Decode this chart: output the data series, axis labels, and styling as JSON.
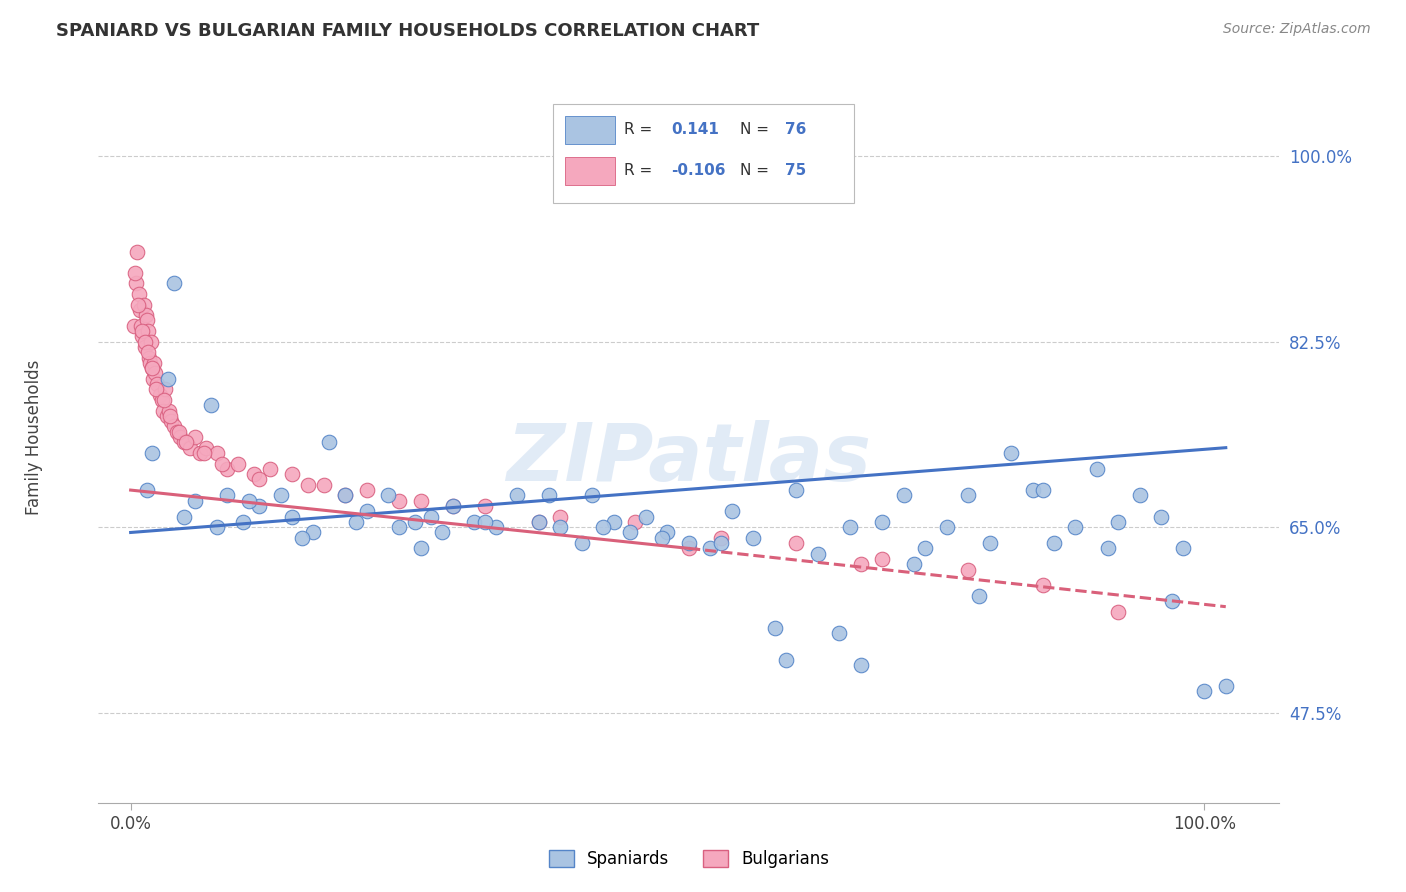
{
  "title": "SPANIARD VS BULGARIAN FAMILY HOUSEHOLDS CORRELATION CHART",
  "source_text": "Source: ZipAtlas.com",
  "ylabel": "Family Households",
  "watermark": "ZIPatlas",
  "x_tick_labels": [
    "0.0%",
    "100.0%"
  ],
  "y_tick_positions": [
    47.5,
    65.0,
    82.5,
    100.0
  ],
  "y_tick_labels": [
    "47.5%",
    "65.0%",
    "82.5%",
    "100.0%"
  ],
  "xlim": [
    -3,
    107
  ],
  "ylim": [
    39,
    108
  ],
  "spaniard_color": "#aac4e2",
  "bulgarian_color": "#f5a8be",
  "spaniard_edge_color": "#5585c8",
  "bulgarian_edge_color": "#d96080",
  "spaniard_line_color": "#4472c4",
  "bulgarian_line_color": "#d9607a",
  "background_color": "#ffffff",
  "grid_color": "#cccccc",
  "legend_label_spaniard": "Spaniards",
  "legend_label_bulgarian": "Bulgarians",
  "spaniard_trend_start_x": 0,
  "spaniard_trend_end_x": 102,
  "spaniard_trend_start_y": 64.5,
  "spaniard_trend_end_y": 72.5,
  "bulgarian_solid_start_x": 0,
  "bulgarian_solid_end_x": 52,
  "bulgarian_solid_start_y": 68.5,
  "bulgarian_solid_end_y": 63.0,
  "bulgarian_dash_start_x": 52,
  "bulgarian_dash_end_x": 102,
  "bulgarian_dash_start_y": 63.0,
  "bulgarian_dash_end_y": 57.5,
  "spaniards_x": [
    1.5,
    2.0,
    3.5,
    5.0,
    6.0,
    7.5,
    8.0,
    9.0,
    10.5,
    12.0,
    14.0,
    15.0,
    17.0,
    18.5,
    20.0,
    21.0,
    22.0,
    24.0,
    25.0,
    26.5,
    28.0,
    29.0,
    30.0,
    32.0,
    34.0,
    36.0,
    38.0,
    40.0,
    42.0,
    43.0,
    45.0,
    46.5,
    48.0,
    50.0,
    52.0,
    54.0,
    56.0,
    58.0,
    60.0,
    62.0,
    64.0,
    66.0,
    68.0,
    70.0,
    72.0,
    74.0,
    76.0,
    78.0,
    80.0,
    82.0,
    84.0,
    86.0,
    88.0,
    90.0,
    92.0,
    94.0,
    96.0,
    98.0,
    100.0,
    4.0,
    11.0,
    16.0,
    27.0,
    33.0,
    39.0,
    44.0,
    49.5,
    55.0,
    61.0,
    67.0,
    73.0,
    79.0,
    85.0,
    91.0,
    97.0,
    102.0
  ],
  "spaniards_y": [
    68.5,
    72.0,
    79.0,
    66.0,
    67.5,
    76.5,
    65.0,
    68.0,
    65.5,
    67.0,
    68.0,
    66.0,
    64.5,
    73.0,
    68.0,
    65.5,
    66.5,
    68.0,
    65.0,
    65.5,
    66.0,
    64.5,
    67.0,
    65.5,
    65.0,
    68.0,
    65.5,
    65.0,
    63.5,
    68.0,
    65.5,
    64.5,
    66.0,
    64.5,
    63.5,
    63.0,
    66.5,
    64.0,
    55.5,
    68.5,
    62.5,
    55.0,
    52.0,
    65.5,
    68.0,
    63.0,
    65.0,
    68.0,
    63.5,
    72.0,
    68.5,
    63.5,
    65.0,
    70.5,
    65.5,
    68.0,
    66.0,
    63.0,
    49.5,
    88.0,
    67.5,
    64.0,
    63.0,
    65.5,
    68.0,
    65.0,
    64.0,
    63.5,
    52.5,
    65.0,
    61.5,
    58.5,
    68.5,
    63.0,
    58.0,
    50.0
  ],
  "bulgarians_x": [
    0.3,
    0.5,
    0.6,
    0.8,
    0.9,
    1.0,
    1.1,
    1.2,
    1.3,
    1.4,
    1.5,
    1.6,
    1.7,
    1.8,
    1.9,
    2.0,
    2.1,
    2.2,
    2.3,
    2.5,
    2.7,
    2.9,
    3.0,
    3.2,
    3.4,
    3.6,
    3.8,
    4.0,
    4.3,
    4.6,
    5.0,
    5.5,
    6.0,
    6.5,
    7.0,
    8.0,
    9.0,
    10.0,
    11.5,
    13.0,
    15.0,
    18.0,
    22.0,
    27.0,
    33.0,
    40.0,
    47.0,
    55.0,
    62.0,
    70.0,
    78.0,
    85.0,
    92.0,
    0.4,
    0.7,
    1.05,
    1.35,
    1.65,
    1.95,
    2.4,
    3.1,
    3.7,
    4.5,
    5.2,
    6.8,
    8.5,
    12.0,
    16.5,
    20.0,
    25.0,
    30.0,
    38.0,
    52.0,
    68.0
  ],
  "bulgarians_y": [
    84.0,
    88.0,
    91.0,
    87.0,
    85.5,
    84.0,
    83.0,
    86.0,
    82.0,
    85.0,
    84.5,
    83.5,
    81.0,
    80.5,
    82.5,
    80.0,
    79.0,
    80.5,
    79.5,
    78.5,
    77.5,
    77.0,
    76.0,
    78.0,
    75.5,
    76.0,
    75.0,
    74.5,
    74.0,
    73.5,
    73.0,
    72.5,
    73.5,
    72.0,
    72.5,
    72.0,
    70.5,
    71.0,
    70.0,
    70.5,
    70.0,
    69.0,
    68.5,
    67.5,
    67.0,
    66.0,
    65.5,
    64.0,
    63.5,
    62.0,
    61.0,
    59.5,
    57.0,
    89.0,
    86.0,
    83.5,
    82.5,
    81.5,
    80.0,
    78.0,
    77.0,
    75.5,
    74.0,
    73.0,
    72.0,
    71.0,
    69.5,
    69.0,
    68.0,
    67.5,
    67.0,
    65.5,
    63.0,
    61.5
  ]
}
